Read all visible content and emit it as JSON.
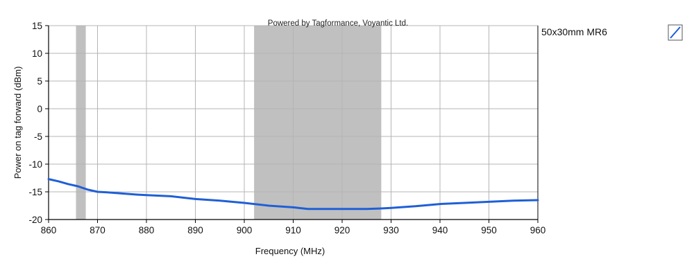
{
  "credit_text": "Powered by Tagformance, Voyantic Ltd.",
  "colors": {
    "series": "#1f5fd6",
    "band": "#c0c0c0",
    "grid": "#b4b4b4",
    "axis": "#000000"
  },
  "chart_data": {
    "type": "line",
    "title": "",
    "xlabel": "Frequency (MHz)",
    "ylabel": "Power on tag forward (dBm)",
    "xlim": [
      860,
      960
    ],
    "ylim": [
      -20,
      15
    ],
    "x_ticks": [
      "860",
      "870",
      "880",
      "890",
      "900",
      "910",
      "920",
      "930",
      "940",
      "950",
      "960"
    ],
    "y_ticks": [
      "15",
      "10",
      "5",
      "0",
      "-5",
      "-10",
      "-15",
      "-20"
    ],
    "grid": true,
    "legend_position": "right",
    "shaded_bands": [
      [
        865.6,
        867.6
      ],
      [
        902,
        928
      ]
    ],
    "series": [
      {
        "name": "50x30mm MR6",
        "legend_icon": "line-swatch-icon",
        "x": [
          860,
          862,
          864,
          866,
          868,
          870,
          872,
          875,
          878,
          880,
          885,
          890,
          895,
          900,
          905,
          910,
          913,
          916,
          920,
          925,
          928,
          930,
          935,
          940,
          945,
          950,
          955,
          960
        ],
        "y": [
          -12.7,
          -13.1,
          -13.6,
          -14.0,
          -14.6,
          -15.0,
          -15.1,
          -15.3,
          -15.5,
          -15.6,
          -15.8,
          -16.3,
          -16.6,
          -17.0,
          -17.5,
          -17.8,
          -18.1,
          -18.1,
          -18.1,
          -18.1,
          -18.0,
          -17.9,
          -17.6,
          -17.2,
          -17.0,
          -16.8,
          -16.6,
          -16.5
        ]
      }
    ]
  }
}
